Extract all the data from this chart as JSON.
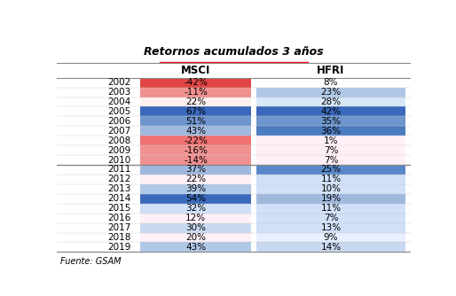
{
  "title": "Retornos acumulados 3 años",
  "col1_header": "MSCI",
  "col2_header": "HFRI",
  "source": "Fuente: GSAM",
  "years": [
    2002,
    2003,
    2004,
    2005,
    2006,
    2007,
    2008,
    2009,
    2010,
    2011,
    2012,
    2013,
    2014,
    2015,
    2016,
    2017,
    2018,
    2019
  ],
  "msci": [
    -42,
    -11,
    22,
    67,
    51,
    43,
    -22,
    -16,
    -14,
    37,
    22,
    39,
    54,
    32,
    12,
    30,
    20,
    43
  ],
  "hfri": [
    8,
    23,
    28,
    42,
    35,
    36,
    1,
    7,
    7,
    25,
    11,
    10,
    19,
    11,
    7,
    13,
    9,
    14
  ],
  "msci_colors": [
    "#E04444",
    "#F09090",
    "#FFF0F0",
    "#3A68BB",
    "#6E96CC",
    "#A0B8DE",
    "#F07070",
    "#F09090",
    "#F09090",
    "#A0B8DE",
    "#FFF0F8",
    "#B0C8E8",
    "#3A68BB",
    "#D0E0F8",
    "#FFF0F8",
    "#C8D8F0",
    "#FFF0F8",
    "#B0C8E8"
  ],
  "hfri_colors": [
    "#FFFFFF",
    "#B0C8E8",
    "#D8E8F8",
    "#3A68BB",
    "#6E96CC",
    "#4C7CC0",
    "#FFF0F8",
    "#FFF0F8",
    "#FFF0F8",
    "#5888C8",
    "#D0E0F8",
    "#D0E0F8",
    "#A0B8DE",
    "#D0E0F8",
    "#D0E0F8",
    "#D0E0F8",
    "#E8F0FF",
    "#C8D8F0"
  ],
  "separator_after": [
    9
  ],
  "fig_width": 5.14,
  "fig_height": 3.34,
  "dpi": 100
}
